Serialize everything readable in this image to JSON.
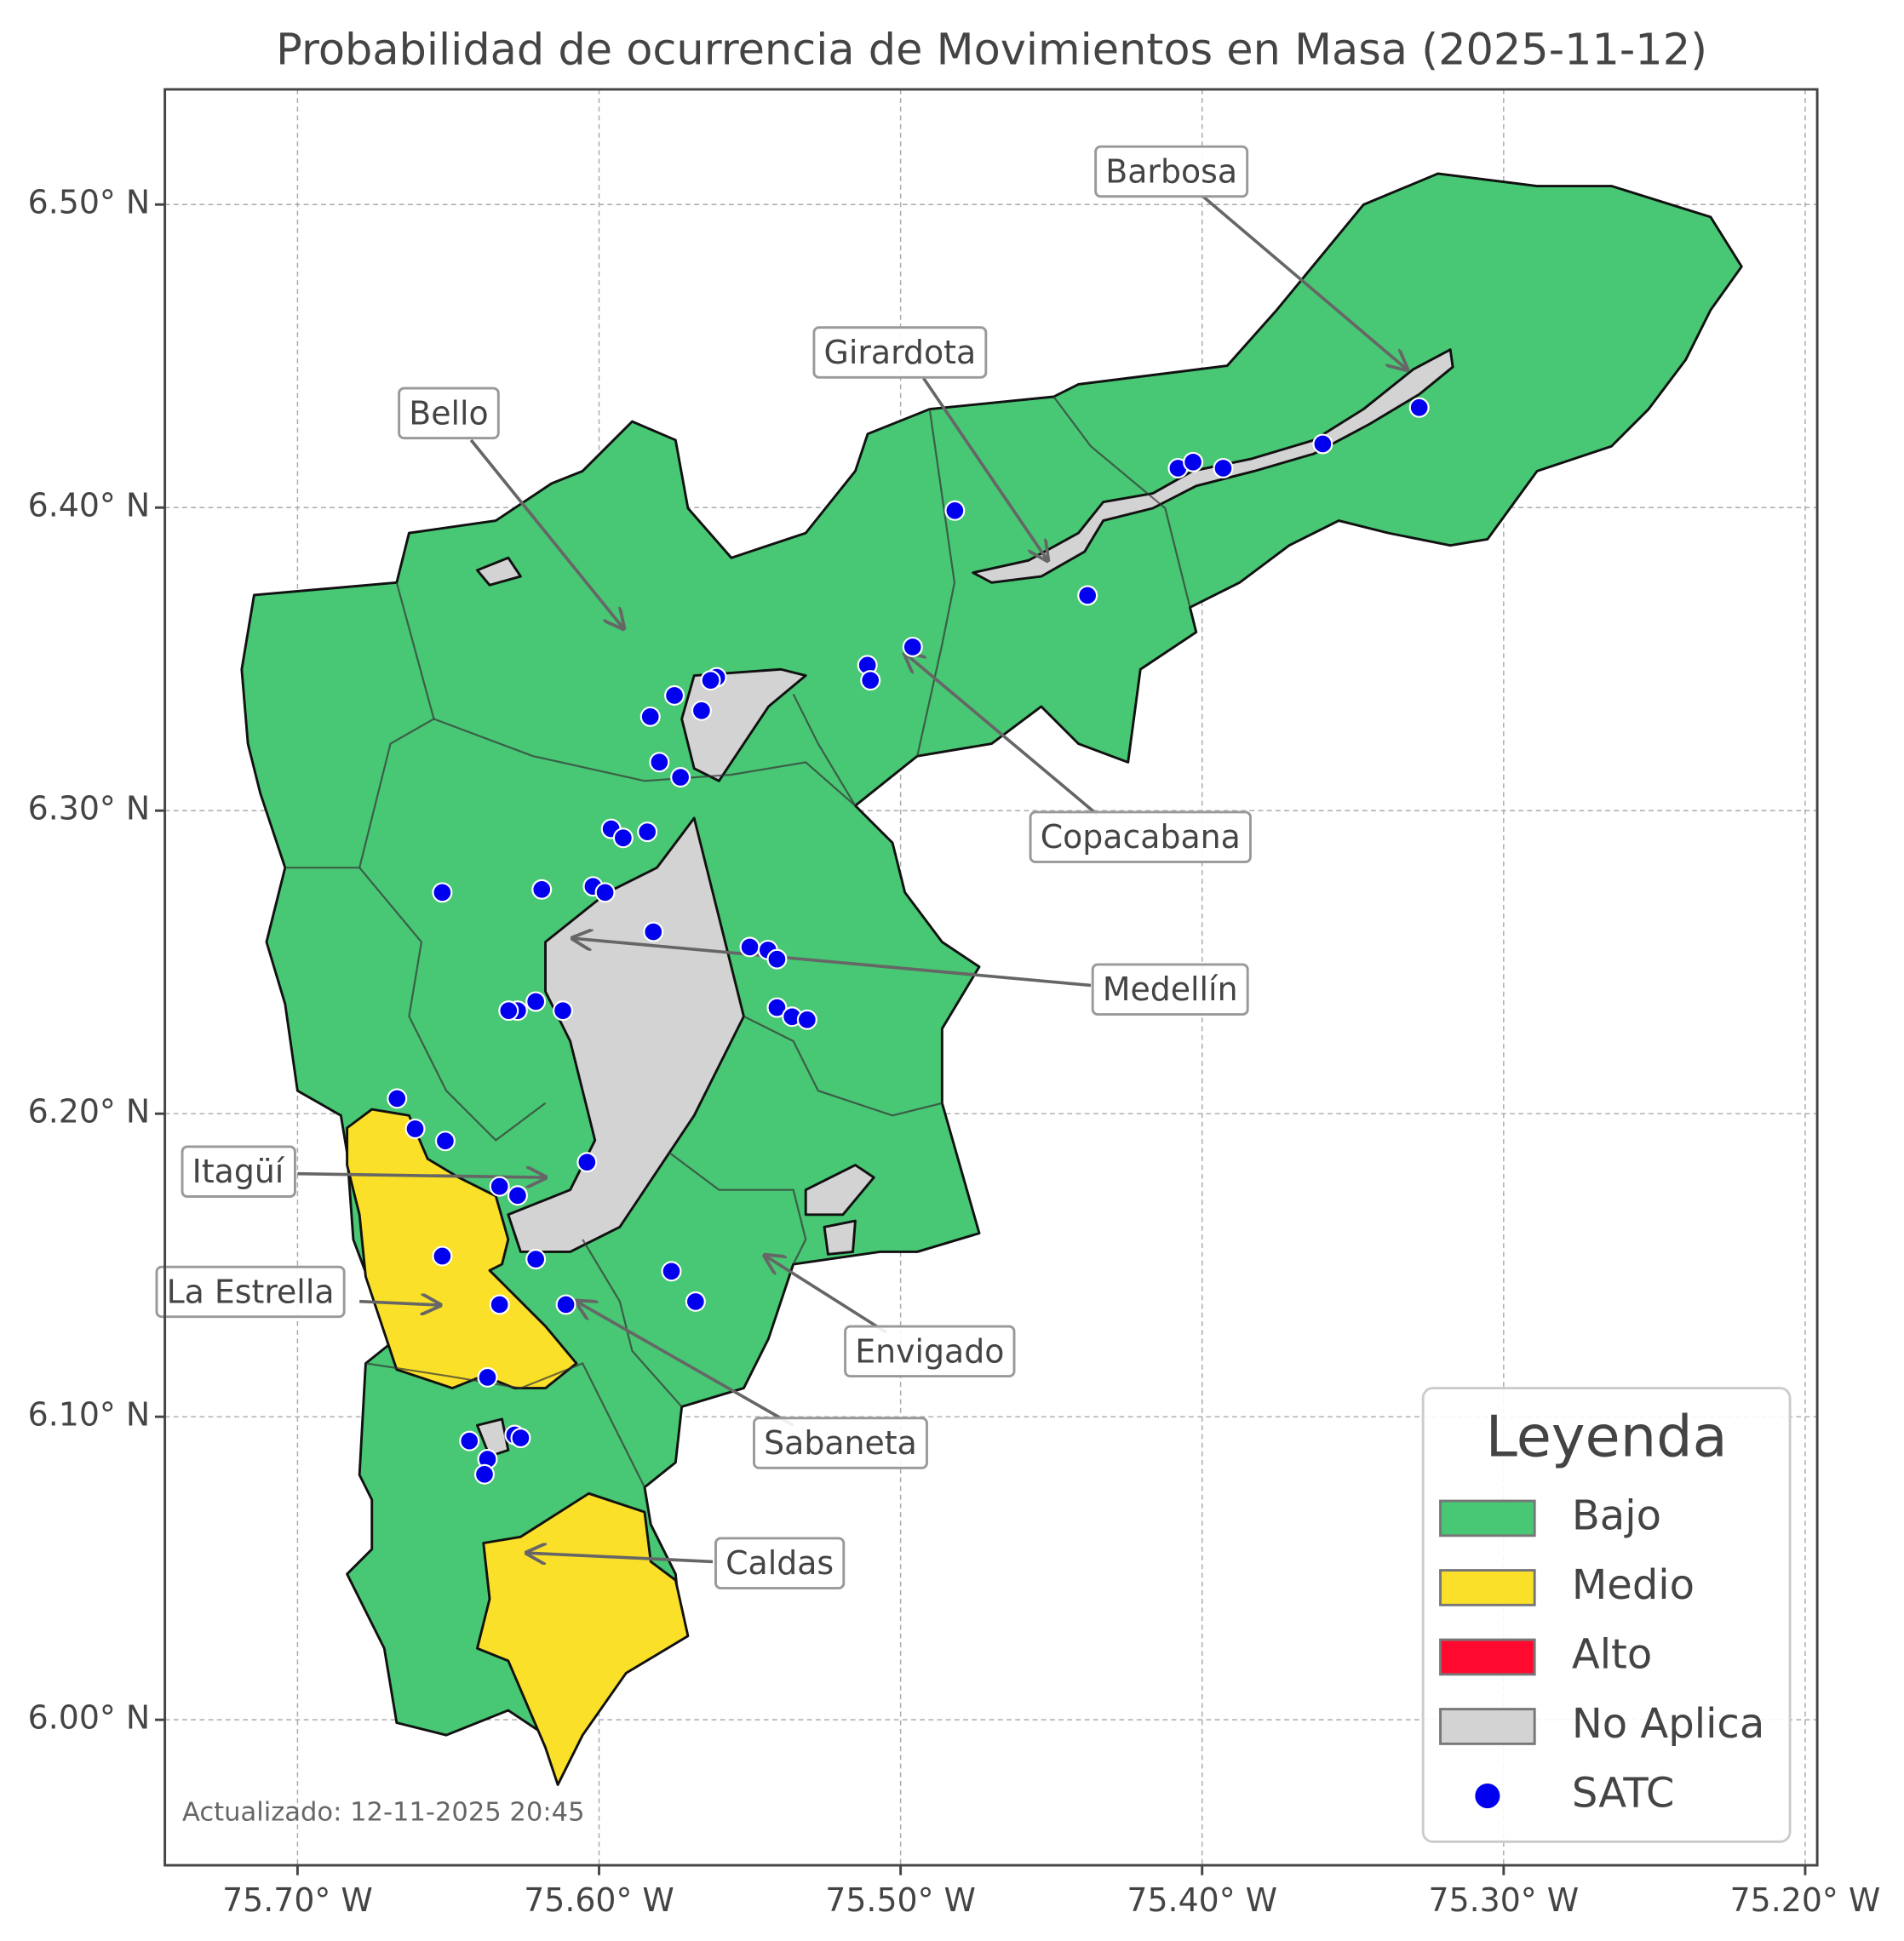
{
  "chart_data": {
    "type": "map",
    "title": "Probabilidad de ocurrencia de Movimientos en Masa (2025-11-12)",
    "updated": "Actualizado: 12-11-2025 20:45",
    "xlim": [
      -75.744,
      -75.196
    ],
    "ylim": [
      5.952,
      6.538
    ],
    "xticks": [
      {
        "value": -75.7,
        "label": "75.70° W"
      },
      {
        "value": -75.6,
        "label": "75.60° W"
      },
      {
        "value": -75.5,
        "label": "75.50° W"
      },
      {
        "value": -75.4,
        "label": "75.40° W"
      },
      {
        "value": -75.3,
        "label": "75.30° W"
      },
      {
        "value": -75.2,
        "label": "75.20° W"
      }
    ],
    "yticks": [
      {
        "value": 6.0,
        "label": "6.00° N"
      },
      {
        "value": 6.1,
        "label": "6.10° N"
      },
      {
        "value": 6.2,
        "label": "6.20° N"
      },
      {
        "value": 6.3,
        "label": "6.30° N"
      },
      {
        "value": 6.4,
        "label": "6.40° N"
      },
      {
        "value": 6.5,
        "label": "6.50° N"
      }
    ],
    "grid": true,
    "legend": {
      "title": "Leyenda",
      "items": [
        {
          "label": "Bajo",
          "color": "#48c774"
        },
        {
          "label": "Medio",
          "color": "#fbe02a"
        },
        {
          "label": "Alto",
          "color": "#ff0a2e"
        },
        {
          "label": "No Aplica",
          "color": "#d3d3d3"
        }
      ]
    },
    "satc": {
      "name": "SATC",
      "color": "#0000ee",
      "lon": [
        -75.482,
        -75.408,
        -75.403,
        -75.393,
        -75.36,
        -75.328,
        -75.438,
        -75.496,
        -75.511,
        -75.51,
        -75.561,
        -75.563,
        -75.575,
        -75.583,
        -75.566,
        -75.58,
        -75.573,
        -75.596,
        -75.592,
        -75.584,
        -75.652,
        -75.619,
        -75.602,
        -75.598,
        -75.582,
        -75.55,
        -75.544,
        -75.541,
        -75.541,
        -75.536,
        -75.531,
        -75.612,
        -75.621,
        -75.627,
        -75.63,
        -75.667,
        -75.661,
        -75.651,
        -75.633,
        -75.627,
        -75.604,
        -75.621,
        -75.652,
        -75.576,
        -75.568,
        -75.633,
        -75.611,
        -75.637,
        -75.643,
        -75.628,
        -75.626,
        -75.637,
        -75.638
      ],
      "lat": [
        6.399,
        6.413,
        6.415,
        6.413,
        6.421,
        6.433,
        6.371,
        6.354,
        6.348,
        6.343,
        6.344,
        6.343,
        6.338,
        6.331,
        6.333,
        6.316,
        6.311,
        6.294,
        6.291,
        6.293,
        6.273,
        6.274,
        6.275,
        6.273,
        6.26,
        6.255,
        6.254,
        6.251,
        6.235,
        6.232,
        6.231,
        6.234,
        6.237,
        6.234,
        6.234,
        6.205,
        6.195,
        6.191,
        6.176,
        6.173,
        6.184,
        6.152,
        6.153,
        6.148,
        6.138,
        6.137,
        6.137,
        6.113,
        6.092,
        6.094,
        6.093,
        6.086,
        6.081
      ]
    },
    "annotations": [
      "Barbosa",
      "Girardota",
      "Bello",
      "Copacabana",
      "Medellín",
      "Itagüí",
      "La Estrella",
      "Envigado",
      "Sabaneta",
      "Caldas"
    ]
  }
}
